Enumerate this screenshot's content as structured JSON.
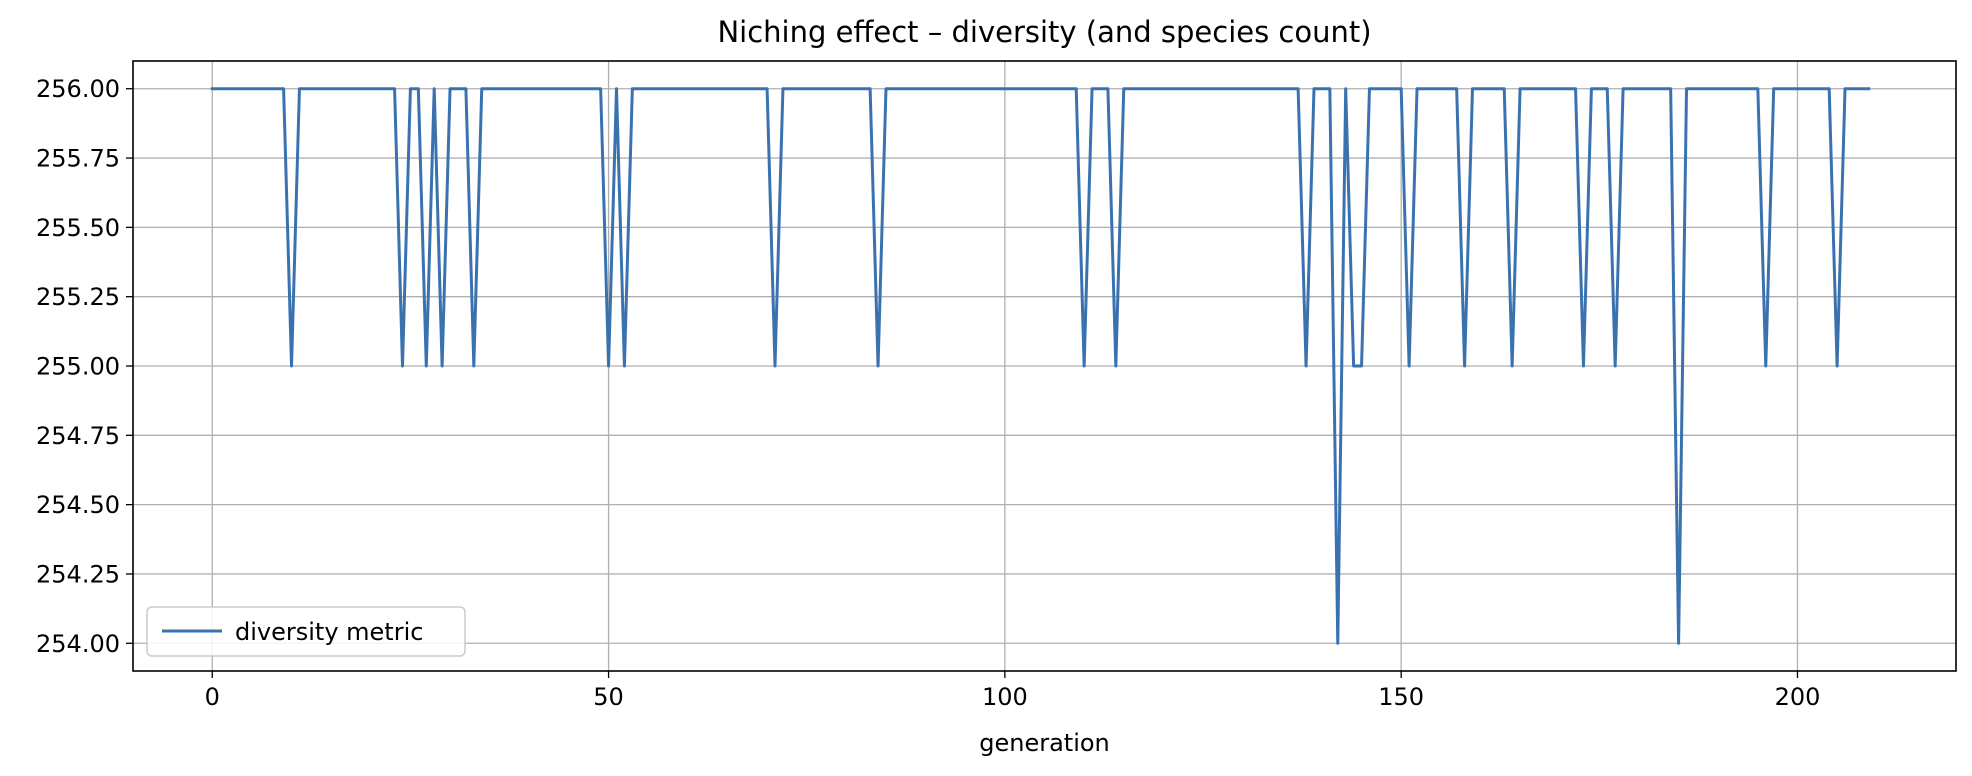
{
  "chart_data": {
    "type": "line",
    "title": "Niching effect – diversity (and species count)",
    "xlabel": "generation",
    "ylabel": "",
    "xlim": [
      -10,
      220
    ],
    "ylim": [
      253.9,
      256.1
    ],
    "x_ticks": [
      0,
      50,
      100,
      150,
      200
    ],
    "x_tick_labels": [
      "0",
      "50",
      "100",
      "150",
      "200"
    ],
    "y_ticks": [
      254.0,
      254.25,
      254.5,
      254.75,
      255.0,
      255.25,
      255.5,
      255.75,
      256.0
    ],
    "y_tick_labels": [
      "254.00",
      "254.25",
      "254.50",
      "254.75",
      "255.00",
      "255.25",
      "255.50",
      "255.75",
      "256.00"
    ],
    "grid": true,
    "legend_position": "lower-left",
    "series": [
      {
        "name": "diversity metric",
        "color": "#3a72b0",
        "x": [
          0,
          1,
          2,
          3,
          4,
          5,
          6,
          7,
          8,
          9,
          10,
          11,
          12,
          13,
          14,
          15,
          16,
          17,
          18,
          19,
          20,
          21,
          22,
          23,
          24,
          25,
          26,
          27,
          28,
          29,
          30,
          31,
          32,
          33,
          34,
          35,
          36,
          37,
          38,
          39,
          40,
          41,
          42,
          43,
          44,
          45,
          46,
          47,
          48,
          49,
          50,
          51,
          52,
          53,
          54,
          55,
          56,
          57,
          58,
          59,
          60,
          61,
          62,
          63,
          64,
          65,
          66,
          67,
          68,
          69,
          70,
          71,
          72,
          73,
          74,
          75,
          76,
          77,
          78,
          79,
          80,
          81,
          82,
          83,
          84,
          85,
          86,
          87,
          88,
          89,
          90,
          91,
          92,
          93,
          94,
          95,
          96,
          97,
          98,
          99,
          100,
          101,
          102,
          103,
          104,
          105,
          106,
          107,
          108,
          109,
          110,
          111,
          112,
          113,
          114,
          115,
          116,
          117,
          118,
          119,
          120,
          121,
          122,
          123,
          124,
          125,
          126,
          127,
          128,
          129,
          130,
          131,
          132,
          133,
          134,
          135,
          136,
          137,
          138,
          139,
          140,
          141,
          142,
          143,
          144,
          145,
          146,
          147,
          148,
          149,
          150,
          151,
          152,
          153,
          154,
          155,
          156,
          157,
          158,
          159,
          160,
          161,
          162,
          163,
          164,
          165,
          166,
          167,
          168,
          169,
          170,
          171,
          172,
          173,
          174,
          175,
          176,
          177,
          178,
          179,
          180,
          181,
          182,
          183,
          184,
          185,
          186,
          187,
          188,
          189,
          190,
          191,
          192,
          193,
          194,
          195,
          196,
          197,
          198,
          199,
          200,
          201,
          202,
          203,
          204,
          205,
          206,
          207,
          208,
          209
        ],
        "y": [
          256,
          256,
          256,
          256,
          256,
          256,
          256,
          256,
          256,
          256,
          255,
          256,
          256,
          256,
          256,
          256,
          256,
          256,
          256,
          256,
          256,
          256,
          256,
          256,
          255,
          256,
          256,
          255,
          256,
          255,
          256,
          256,
          256,
          255,
          256,
          256,
          256,
          256,
          256,
          256,
          256,
          256,
          256,
          256,
          256,
          256,
          256,
          256,
          256,
          256,
          255,
          256,
          255,
          256,
          256,
          256,
          256,
          256,
          256,
          256,
          256,
          256,
          256,
          256,
          256,
          256,
          256,
          256,
          256,
          256,
          256,
          255,
          256,
          256,
          256,
          256,
          256,
          256,
          256,
          256,
          256,
          256,
          256,
          256,
          255,
          256,
          256,
          256,
          256,
          256,
          256,
          256,
          256,
          256,
          256,
          256,
          256,
          256,
          256,
          256,
          256,
          256,
          256,
          256,
          256,
          256,
          256,
          256,
          256,
          256,
          255,
          256,
          256,
          256,
          255,
          256,
          256,
          256,
          256,
          256,
          256,
          256,
          256,
          256,
          256,
          256,
          256,
          256,
          256,
          256,
          256,
          256,
          256,
          256,
          256,
          256,
          256,
          256,
          255,
          256,
          256,
          256,
          254,
          256,
          255,
          255,
          256,
          256,
          256,
          256,
          256,
          255,
          256,
          256,
          256,
          256,
          256,
          256,
          255,
          256,
          256,
          256,
          256,
          256,
          255,
          256,
          256,
          256,
          256,
          256,
          256,
          256,
          256,
          255,
          256,
          256,
          256,
          255,
          256,
          256,
          256,
          256,
          256,
          256,
          256,
          254,
          256,
          256,
          256,
          256,
          256,
          256,
          256,
          256,
          256,
          256,
          255,
          256,
          256,
          256,
          256,
          256,
          256,
          256,
          256,
          255,
          256,
          256,
          256,
          256
        ]
      }
    ]
  }
}
